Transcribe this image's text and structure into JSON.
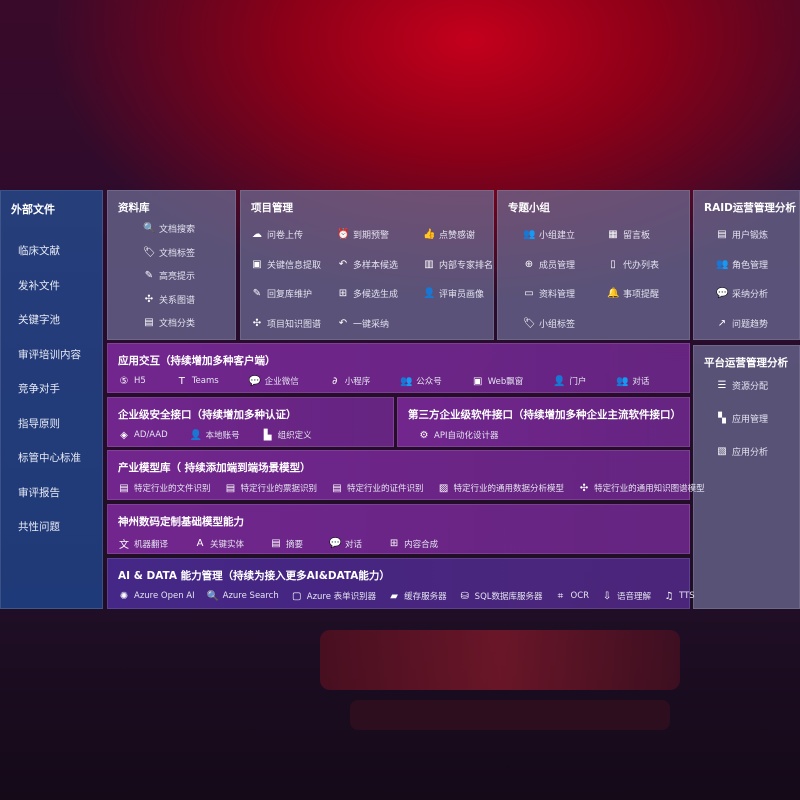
{
  "sidebar": {
    "title": "外部文件",
    "items": [
      "临床文献",
      "发补文件",
      "关键字池",
      "审评培训内容",
      "竞争对手",
      "指导原则",
      "标管中心标准",
      "审评报告",
      "共性问题"
    ]
  },
  "library": {
    "title": "资料库",
    "items": [
      {
        "icon": "document-search-icon",
        "label": "文档搜索"
      },
      {
        "icon": "tag-icon",
        "label": "文档标签"
      },
      {
        "icon": "pen-icon",
        "label": "高亮提示"
      },
      {
        "icon": "graph-icon",
        "label": "关系图谱"
      },
      {
        "icon": "document-icon",
        "label": "文档分类"
      }
    ]
  },
  "project": {
    "title": "项目管理",
    "items": [
      {
        "icon": "cloud-upload-icon",
        "label": "问卷上传"
      },
      {
        "icon": "alarm-icon",
        "label": "到期预警"
      },
      {
        "icon": "thumbs-up-icon",
        "label": "点赞感谢"
      },
      {
        "icon": "window-icon",
        "label": "关键信息提取"
      },
      {
        "icon": "reply-icon",
        "label": "多样本候选"
      },
      {
        "icon": "ranking-icon",
        "label": "内部专家排名"
      },
      {
        "icon": "pen-icon",
        "label": "回复库维护"
      },
      {
        "icon": "puzzle-icon",
        "label": "多候选生成"
      },
      {
        "icon": "user-icon",
        "label": "评审员画像"
      },
      {
        "icon": "graph-icon",
        "label": "项目知识图谱"
      },
      {
        "icon": "reply-icon",
        "label": "一键采纳"
      }
    ]
  },
  "group": {
    "title": "专题小组",
    "items": [
      {
        "icon": "users-icon",
        "label": "小组建立"
      },
      {
        "icon": "bbs-icon",
        "label": "留言板"
      },
      {
        "icon": "user-add-icon",
        "label": "成员管理"
      },
      {
        "icon": "clipboard-icon",
        "label": "代办列表"
      },
      {
        "icon": "folder-icon",
        "label": "资料管理"
      },
      {
        "icon": "bell-icon",
        "label": "事项提醒"
      },
      {
        "icon": "tag-icon",
        "label": "小组标签"
      }
    ]
  },
  "raid": {
    "title": "RAID运营管理分析",
    "items": [
      {
        "icon": "id-card-icon",
        "label": "用户锻炼"
      },
      {
        "icon": "users-icon",
        "label": "角色管理"
      },
      {
        "icon": "qa-icon",
        "label": "采纳分析"
      },
      {
        "icon": "trend-icon",
        "label": "问题趋势"
      }
    ]
  },
  "platform": {
    "title": "平台运营管理分析",
    "items": [
      {
        "icon": "list-icon",
        "label": "资源分配"
      },
      {
        "icon": "apps-icon",
        "label": "应用管理"
      },
      {
        "icon": "chart-icon",
        "label": "应用分析"
      }
    ]
  },
  "interaction": {
    "title": "应用交互（持续增加多种客户端）",
    "items": [
      {
        "icon": "html5-icon",
        "label": "H5"
      },
      {
        "icon": "teams-icon",
        "label": "Teams"
      },
      {
        "icon": "wechat-icon",
        "label": "企业微信"
      },
      {
        "icon": "mini-program-icon",
        "label": "小程序"
      },
      {
        "icon": "users-icon",
        "label": "公众号"
      },
      {
        "icon": "window-icon",
        "label": "Web飘窗"
      },
      {
        "icon": "portal-icon",
        "label": "门户"
      },
      {
        "icon": "chat-users-icon",
        "label": "对话"
      }
    ]
  },
  "security": {
    "title": "企业级安全接口（持续增加多种认证）",
    "items": [
      {
        "icon": "diamond-icon",
        "label": "AD/AAD"
      },
      {
        "icon": "user-icon",
        "label": "本地账号"
      },
      {
        "icon": "org-icon",
        "label": "组织定义"
      }
    ]
  },
  "thirdparty": {
    "title": "第三方企业级软件接口（持续增加多种企业主流软件接口）",
    "items": [
      {
        "icon": "gear-icon",
        "label": "API自动化设计器"
      }
    ]
  },
  "industry": {
    "title": "产业模型库（ 持续添加端到端场景模型）",
    "items": [
      {
        "icon": "file-icon",
        "label": "特定行业的文件识别"
      },
      {
        "icon": "receipt-icon",
        "label": "特定行业的票据识别"
      },
      {
        "icon": "id-card-icon",
        "label": "特定行业的证件识别"
      },
      {
        "icon": "image-icon",
        "label": "特定行业的通用数据分析模型"
      },
      {
        "icon": "graph-icon",
        "label": "特定行业的通用知识图谱模型"
      }
    ]
  },
  "base": {
    "title": "神州数码定制基础模型能力",
    "items": [
      {
        "icon": "translate-icon",
        "label": "机器翻译"
      },
      {
        "icon": "entity-icon",
        "label": "关键实体"
      },
      {
        "icon": "summary-icon",
        "label": "摘要"
      },
      {
        "icon": "chat-icon",
        "label": "对话"
      },
      {
        "icon": "puzzle-icon",
        "label": "内容合成"
      }
    ]
  },
  "ai": {
    "title": "AI & DATA 能力管理（持续为接入更多AI&DATA能力）",
    "items": [
      {
        "icon": "openai-icon",
        "label": "Azure Open AI"
      },
      {
        "icon": "search-icon",
        "label": "Azure Search"
      },
      {
        "icon": "form-icon",
        "label": "Azure 表单识别器"
      },
      {
        "icon": "cache-icon",
        "label": "缓存服务器"
      },
      {
        "icon": "database-icon",
        "label": "SQL数据库服务器"
      },
      {
        "icon": "ocr-icon",
        "label": "OCR"
      },
      {
        "icon": "voice-icon",
        "label": "语音理解"
      },
      {
        "icon": "tts-icon",
        "label": "TTS"
      }
    ]
  }
}
